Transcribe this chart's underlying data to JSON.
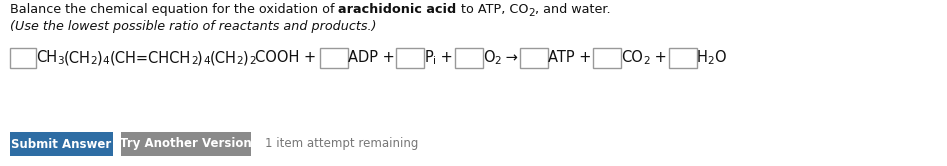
{
  "bg_color": "#ffffff",
  "submit_btn_color": "#2E6DA4",
  "try_btn_color": "#8A8A8A",
  "submit_text": "Submit Answer",
  "try_text": "Try Another Version",
  "attempt_text": "1 item attempt remaining",
  "box_border": "#999999",
  "font_size_title": 9.2,
  "font_size_eq": 10.5,
  "font_size_btn": 8.5,
  "font_size_sub": 7.5
}
